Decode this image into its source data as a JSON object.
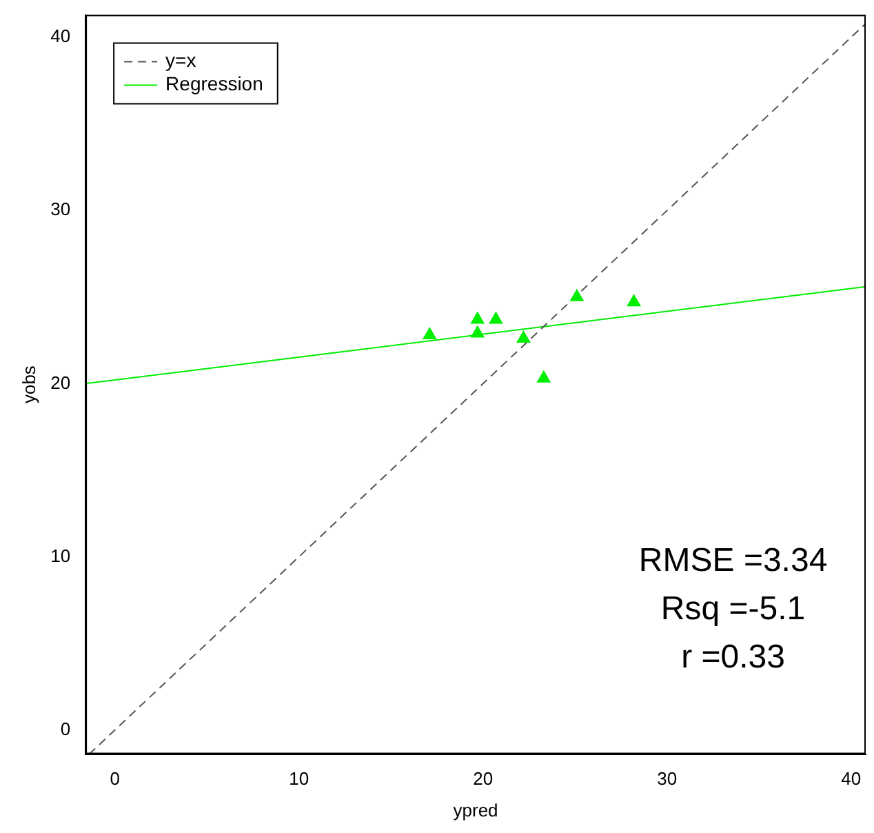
{
  "chart_data": {
    "type": "scatter",
    "xlabel": "ypred",
    "ylabel": "yobs",
    "xlim": [
      -1.6,
      40.8
    ],
    "ylim": [
      -1.4,
      41.3
    ],
    "xticks": [
      0,
      10,
      20,
      30,
      40
    ],
    "yticks": [
      0,
      10,
      20,
      30,
      40
    ],
    "grid": false,
    "legend": "top left",
    "marker": "triangle",
    "series": [
      {
        "color": "#00ee00",
        "x": [
          17.1,
          19.7,
          19.7,
          20.7,
          22.2,
          23.3,
          25.1,
          28.2
        ],
        "values": [
          22.8,
          23.7,
          22.9,
          23.7,
          22.6,
          20.3,
          25.0,
          24.7
        ]
      },
      {
        "type": "line",
        "name": "y=x",
        "color": "#555555",
        "line_style": "dashed",
        "marker": "none",
        "x": [
          -1.4,
          40.8
        ],
        "values": [
          -1.4,
          40.8
        ]
      },
      {
        "type": "line",
        "name": "Regression",
        "color": "#00ee00",
        "line_style": "solid",
        "marker": "none",
        "x": [
          -1.6,
          40.8
        ],
        "values": [
          20.0,
          25.6
        ]
      }
    ],
    "annotations": [
      "RMSE =3.34",
      "Rsq =-5.1",
      "r =0.33"
    ]
  }
}
